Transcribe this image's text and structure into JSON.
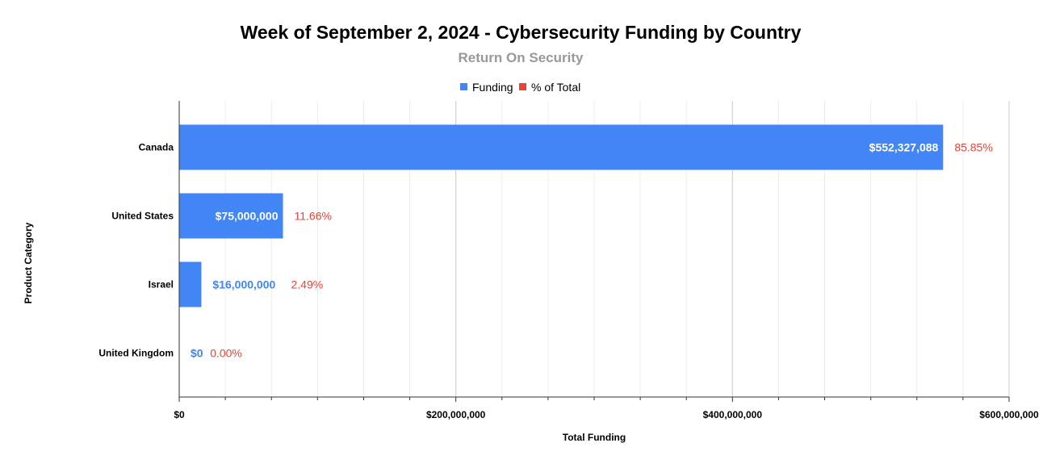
{
  "chart_data": {
    "type": "bar",
    "orientation": "horizontal",
    "title": "Week of September 2, 2024 - Cybersecurity Funding by Country",
    "subtitle": "Return On Security",
    "xlabel": "Total Funding",
    "ylabel": "Product Category",
    "xlim": [
      0,
      600000000
    ],
    "grid": true,
    "legend_position": "top",
    "legend": [
      {
        "name": "Funding",
        "color": "#4285f4"
      },
      {
        "name": "% of Total",
        "color": "#ea4335"
      }
    ],
    "x_ticks": [
      "$0",
      "$200,000,000",
      "$400,000,000",
      "$600,000,000"
    ],
    "categories": [
      "Canada",
      "United States",
      "Israel",
      "United Kingdom"
    ],
    "series": [
      {
        "name": "Funding",
        "values": [
          552327088,
          75000000,
          16000000,
          0
        ],
        "labels": [
          "$552,327,088",
          "$75,000,000",
          "$16,000,000",
          "$0"
        ],
        "color": "#4285f4"
      },
      {
        "name": "% of Total",
        "values": [
          85.85,
          11.66,
          2.49,
          0.0
        ],
        "labels": [
          "85.85%",
          "11.66%",
          "2.49%",
          "0.00%"
        ],
        "color": "#ea4335"
      }
    ]
  }
}
